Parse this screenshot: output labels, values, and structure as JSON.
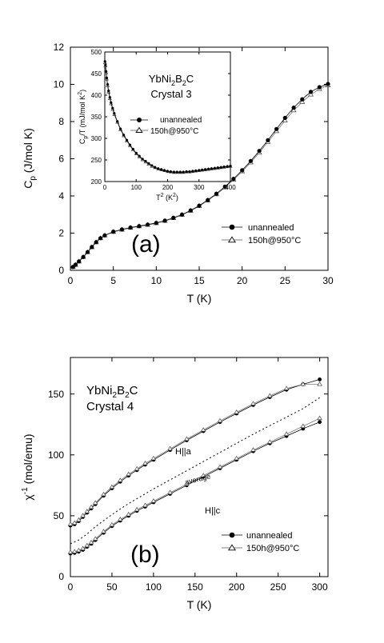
{
  "chart_data": [
    {
      "panel_label": "(a)",
      "type": "scatter",
      "xlabel": "T (K)",
      "ylabel": {
        "main": "C",
        "sub": "p",
        "tail": " (J/mol K)"
      },
      "xlim": [
        0,
        30
      ],
      "ylim": [
        0,
        12
      ],
      "xticks": [
        0,
        5,
        10,
        15,
        20,
        25,
        30
      ],
      "yticks": [
        0,
        2,
        4,
        6,
        8,
        10,
        12
      ],
      "legend_position": "lower-right",
      "series": [
        {
          "name": "unannealed",
          "marker": "filled-circle",
          "x": [
            0.3,
            0.6,
            1,
            1.5,
            2,
            2.5,
            3,
            3.5,
            4,
            5,
            6,
            7,
            8,
            9,
            10,
            11,
            12,
            13,
            14,
            15,
            16,
            17,
            18,
            19,
            20,
            21,
            22,
            23,
            24,
            25,
            26,
            27,
            28,
            29,
            30
          ],
          "y": [
            0.18,
            0.3,
            0.48,
            0.72,
            0.98,
            1.25,
            1.52,
            1.73,
            1.88,
            2.08,
            2.2,
            2.3,
            2.38,
            2.46,
            2.55,
            2.67,
            2.82,
            3.0,
            3.22,
            3.48,
            3.78,
            4.12,
            4.5,
            4.92,
            5.38,
            5.88,
            6.42,
            7.0,
            7.6,
            8.2,
            8.75,
            9.2,
            9.6,
            9.85,
            10.02
          ]
        },
        {
          "name": "150h@950°C",
          "marker": "open-triangle",
          "x": [
            0.3,
            0.6,
            1,
            1.5,
            2,
            2.5,
            3,
            3.5,
            4,
            5,
            6,
            7,
            8,
            9,
            10,
            11,
            12,
            13,
            14,
            15,
            16,
            17,
            18,
            19,
            20,
            21,
            22,
            23,
            24,
            25,
            26,
            27,
            28,
            29,
            30
          ],
          "y": [
            0.17,
            0.29,
            0.47,
            0.71,
            0.97,
            1.24,
            1.5,
            1.72,
            1.87,
            2.06,
            2.18,
            2.28,
            2.36,
            2.44,
            2.53,
            2.65,
            2.8,
            2.98,
            3.2,
            3.45,
            3.75,
            4.08,
            4.45,
            4.87,
            5.32,
            5.8,
            6.33,
            6.9,
            7.48,
            8.05,
            8.6,
            9.05,
            9.45,
            9.75,
            9.95
          ]
        }
      ],
      "annotations": [],
      "inset": {
        "title_line1": {
          "main": "YbNi",
          "s1": "2",
          "mid": "B",
          "s2": "2",
          "tail": "C"
        },
        "title_line2": "Crystal 3",
        "xlabel": {
          "main": "T",
          "sup": "2",
          "tail": " (K",
          "sup2": "2",
          "end": ")"
        },
        "ylabel": {
          "main": "C",
          "sub": "p",
          "tail": "/T (mJ/mol K",
          "sup": "2",
          "end": ")"
        },
        "xlim": [
          0,
          400
        ],
        "ylim": [
          200,
          500
        ],
        "xticks": [
          0,
          100,
          200,
          300,
          400
        ],
        "yticks": [
          200,
          250,
          300,
          350,
          400,
          450,
          500
        ],
        "legend_position": "upper-right",
        "series": [
          {
            "name": "unannealed",
            "marker": "filled-circle",
            "x": [
              0.5,
              2,
              4,
              6,
              9,
              12,
              16,
              20,
              25,
              30,
              40,
              50,
              60,
              70,
              80,
              90,
              100,
              110,
              120,
              130,
              140,
              150,
              160,
              170,
              180,
              190,
              200,
              210,
              220,
              230,
              240,
              250,
              260,
              270,
              280,
              290,
              300,
              310,
              320,
              330,
              340,
              350,
              360,
              370,
              380,
              390,
              400
            ],
            "y": [
              478,
              470,
              455,
              440,
              425,
              410,
              395,
              383,
              370,
              358,
              339,
              322,
              308,
              296,
              285,
              275,
              266,
              259,
              252,
              247,
              242,
              237,
              233,
              230,
              228,
              226,
              224,
              223,
              222,
              222,
              222,
              222,
              223,
              223,
              224,
              225,
              226,
              227,
              228,
              229,
              230,
              231,
              232,
              233,
              234,
              235,
              236
            ]
          },
          {
            "name": "150h@950°C",
            "marker": "open-triangle",
            "x": [
              0.5,
              2,
              4,
              6,
              9,
              12,
              16,
              20,
              25,
              30,
              40,
              50,
              60,
              70,
              80,
              90,
              100,
              110,
              120,
              130,
              140,
              150,
              160,
              170,
              180,
              190,
              200,
              210,
              220,
              230,
              240,
              250,
              260,
              270,
              280,
              290,
              300,
              310,
              320,
              330,
              340,
              350,
              360,
              370,
              380,
              390,
              400
            ],
            "y": [
              475,
              468,
              452,
              437,
              422,
              407,
              392,
              380,
              367,
              355,
              337,
              320,
              306,
              294,
              283,
              273,
              264,
              257,
              250,
              245,
              240,
              235,
              232,
              229,
              227,
              225,
              223,
              222,
              221,
              221,
              221,
              221,
              222,
              222,
              223,
              224,
              225,
              226,
              227,
              228,
              229,
              230,
              231,
              232,
              233,
              234,
              235
            ]
          }
        ]
      }
    },
    {
      "panel_label": "(b)",
      "type": "scatter",
      "title_line1": {
        "main": "YbNi",
        "s1": "2",
        "mid": "B",
        "s2": "2",
        "tail": "C"
      },
      "title_line2": "Crystal 4",
      "xlabel": "T (K)",
      "ylabel": {
        "main": "χ",
        "sup": "-1",
        "tail": " (mol/emu)"
      },
      "xlim": [
        0,
        310
      ],
      "ylim": [
        0,
        180
      ],
      "xticks": [
        0,
        50,
        100,
        150,
        200,
        250,
        300
      ],
      "yticks": [
        0,
        50,
        100,
        150
      ],
      "legend_position": "lower-right",
      "annotations": [
        "H||a",
        "average",
        "H||c"
      ],
      "series": [
        {
          "name": "unannealed",
          "marker": "filled-circle",
          "group": "H||a",
          "x": [
            0,
            5,
            10,
            15,
            20,
            25,
            30,
            40,
            50,
            60,
            70,
            80,
            90,
            100,
            120,
            140,
            160,
            180,
            200,
            220,
            240,
            260,
            280,
            300
          ],
          "y": [
            42,
            43,
            45.5,
            49,
            52.5,
            56,
            59.5,
            66.5,
            72.5,
            78,
            83,
            87.5,
            92,
            96,
            104,
            112,
            119.5,
            127,
            134,
            141,
            147.5,
            153.5,
            158,
            162
          ]
        },
        {
          "name": "150h@950°C",
          "marker": "open-triangle",
          "group": "H||a",
          "x": [
            0,
            5,
            10,
            15,
            20,
            25,
            30,
            40,
            50,
            60,
            70,
            80,
            90,
            100,
            120,
            140,
            160,
            180,
            200,
            220,
            240,
            260,
            280,
            300
          ],
          "y": [
            43,
            44,
            46.5,
            50,
            53.5,
            57,
            60.5,
            67.5,
            73.5,
            79,
            84,
            88.5,
            93,
            97,
            105,
            113,
            120.5,
            128,
            135,
            142,
            148.5,
            154.5,
            158,
            158
          ]
        },
        {
          "name": "unannealed",
          "marker": "filled-circle",
          "group": "H||c",
          "x": [
            0,
            5,
            10,
            15,
            20,
            25,
            30,
            40,
            50,
            60,
            70,
            80,
            90,
            100,
            120,
            140,
            160,
            180,
            200,
            220,
            240,
            260,
            280,
            300
          ],
          "y": [
            19,
            19.5,
            20.5,
            22,
            24.5,
            27,
            30,
            36,
            41.5,
            46,
            50,
            54,
            57.5,
            61,
            68,
            75,
            82,
            89,
            96,
            103,
            109.5,
            115.5,
            121.5,
            127
          ]
        },
        {
          "name": "150h@950°C",
          "marker": "open-triangle",
          "group": "H||c",
          "x": [
            0,
            5,
            10,
            15,
            20,
            25,
            30,
            40,
            50,
            60,
            70,
            80,
            90,
            100,
            120,
            140,
            160,
            180,
            200,
            220,
            240,
            260,
            280,
            300
          ],
          "y": [
            20,
            20.5,
            21.5,
            23,
            25.5,
            28,
            31,
            37,
            42.5,
            47,
            51,
            55,
            58.5,
            62,
            69,
            76,
            83,
            90,
            97,
            104,
            110.5,
            117,
            123.5,
            130
          ]
        },
        {
          "name": "average",
          "marker": "dotted-line",
          "group": "average",
          "x": [
            0,
            10,
            20,
            30,
            40,
            50,
            60,
            70,
            80,
            90,
            100,
            120,
            140,
            160,
            180,
            200,
            220,
            240,
            260,
            280,
            300
          ],
          "y": [
            27,
            30,
            35,
            41,
            46,
            51,
            55.5,
            60,
            64,
            68,
            72,
            79.5,
            87,
            94.5,
            102,
            109.5,
            117,
            124,
            131,
            138,
            147
          ]
        }
      ]
    }
  ]
}
